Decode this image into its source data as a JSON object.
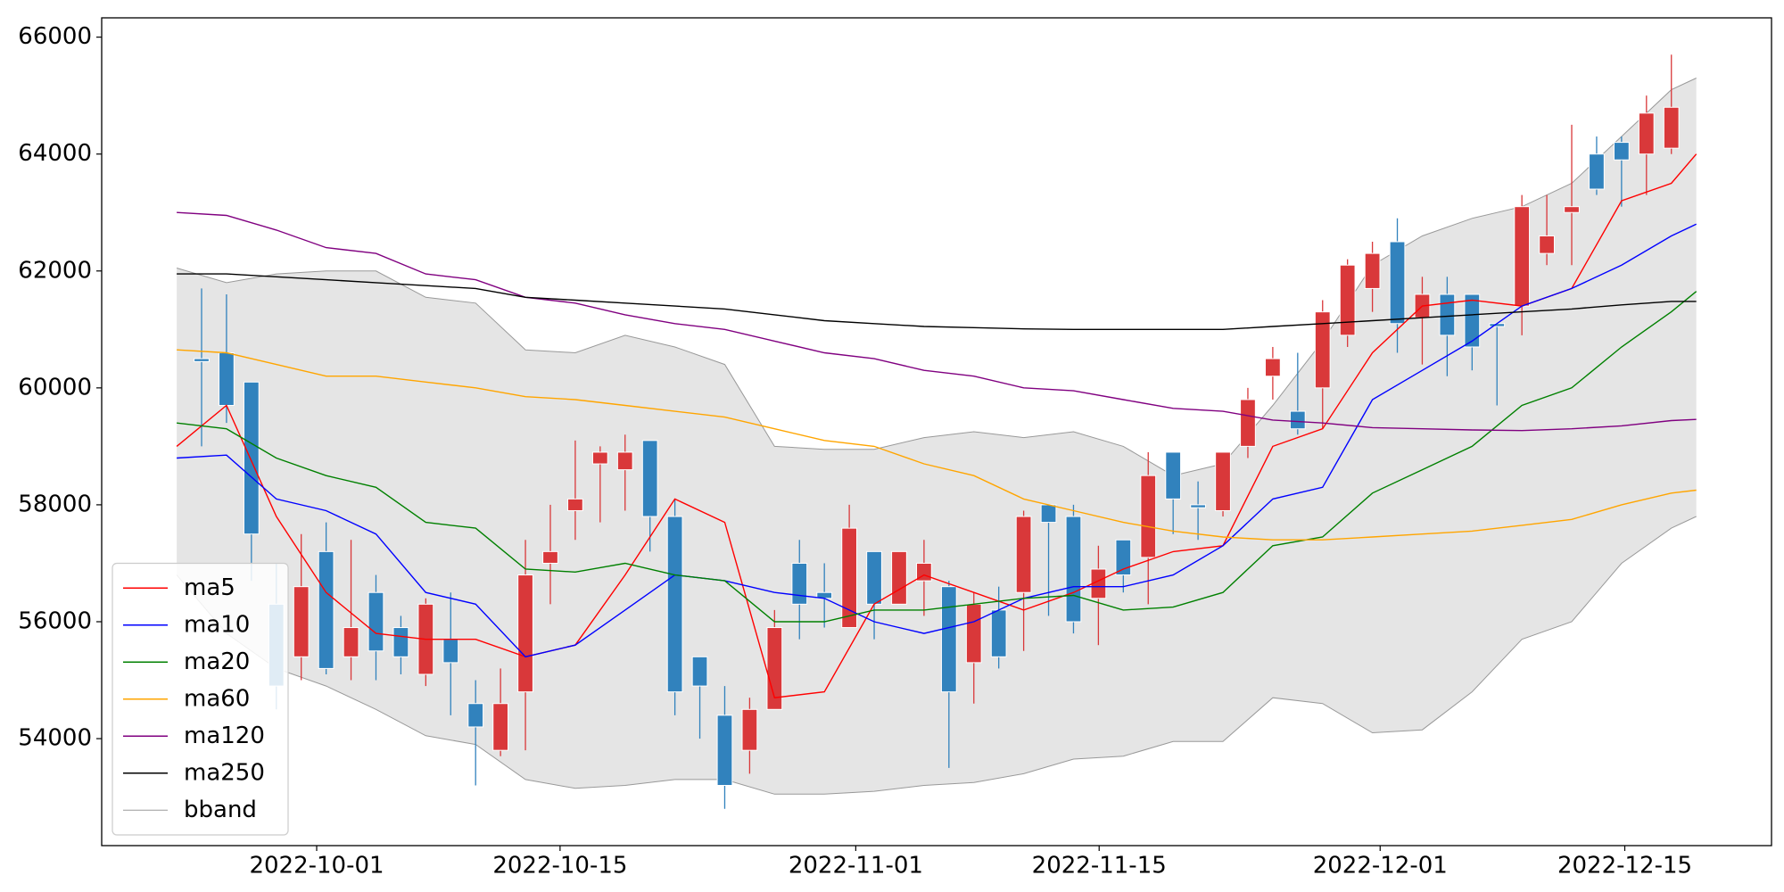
{
  "chart_data": {
    "type": "candlestick",
    "xlim": [
      -3.01,
      64.02
    ],
    "xticks": [
      {
        "value": 5.62,
        "label": "2022-10-01"
      },
      {
        "value": 15.39,
        "label": "2022-10-15"
      },
      {
        "value": 27.26,
        "label": "2022-11-01"
      },
      {
        "value": 37.03,
        "label": "2022-11-15"
      },
      {
        "value": 48.31,
        "label": "2022-12-01"
      },
      {
        "value": 58.13,
        "label": "2022-12-15"
      }
    ],
    "ylim": [
      52170,
      66330
    ],
    "yticks": [
      54000,
      56000,
      58000,
      60000,
      62000,
      64000,
      66000
    ],
    "legend": "lower left",
    "up_color": "#d9383a",
    "down_color": "#3182bd",
    "candles": {
      "x": [
        1,
        2,
        3,
        4,
        5,
        6,
        7,
        8,
        9,
        10,
        11,
        12,
        13,
        14,
        15,
        16,
        17,
        18,
        19,
        20,
        21,
        22,
        23,
        24,
        25,
        26,
        27,
        28,
        29,
        30,
        31,
        32,
        33,
        34,
        35,
        36,
        37,
        38,
        39,
        40,
        41,
        42,
        43,
        44,
        45,
        46,
        47,
        48,
        49,
        50,
        51,
        52,
        53,
        54,
        55,
        56,
        57,
        58,
        59,
        60
      ],
      "open": [
        60500,
        60600,
        60100,
        56300,
        55400,
        57200,
        55400,
        56500,
        55900,
        55100,
        55700,
        54600,
        53800,
        54800,
        57000,
        57900,
        58700,
        58600,
        59100,
        57800,
        55400,
        54400,
        53800,
        54500,
        57000,
        56500,
        55900,
        57200,
        56300,
        56700,
        56600,
        55300,
        56200,
        56500,
        58000,
        57800,
        56400,
        57400,
        57100,
        58900,
        58000,
        57900,
        59000,
        60200,
        59600,
        60000,
        60900,
        61700,
        62500,
        61200,
        61600,
        61600,
        61100,
        61400,
        62300,
        63000,
        64000,
        64200,
        64000,
        64100
      ],
      "high": [
        61700,
        61600,
        60100,
        57000,
        57500,
        57700,
        57400,
        56800,
        56100,
        56400,
        56500,
        55000,
        55200,
        57400,
        58000,
        59100,
        59000,
        59200,
        59100,
        58100,
        55400,
        54900,
        54700,
        56200,
        57400,
        57000,
        58000,
        57200,
        57200,
        57400,
        56700,
        56500,
        56600,
        57900,
        58000,
        58000,
        57300,
        57400,
        58900,
        58900,
        58400,
        58900,
        60000,
        60700,
        60600,
        61500,
        62200,
        62500,
        62900,
        61900,
        61900,
        61600,
        61100,
        63300,
        63300,
        64500,
        64300,
        64300,
        65000,
        65700
      ],
      "low": [
        59000,
        59400,
        56700,
        54500,
        55000,
        55100,
        55000,
        55000,
        55100,
        54900,
        54400,
        53200,
        53700,
        53800,
        56300,
        57400,
        57700,
        57900,
        57200,
        54400,
        54000,
        52800,
        53400,
        54500,
        55700,
        55900,
        55900,
        55700,
        56300,
        56100,
        53500,
        54600,
        55200,
        55500,
        56100,
        55800,
        55600,
        56500,
        56300,
        57500,
        57400,
        57800,
        58800,
        59800,
        59200,
        59300,
        60700,
        61300,
        60600,
        60400,
        60200,
        60300,
        59700,
        60900,
        62100,
        62100,
        63300,
        63100,
        63300,
        64000
      ],
      "close": [
        60450,
        59700,
        57500,
        54900,
        56600,
        55200,
        55900,
        55500,
        55400,
        56300,
        55300,
        54200,
        54600,
        56800,
        57200,
        58100,
        58900,
        58900,
        57800,
        54800,
        54900,
        53200,
        54500,
        55900,
        56300,
        56400,
        57600,
        56300,
        57200,
        57000,
        54800,
        56300,
        55400,
        57800,
        57700,
        56000,
        56900,
        56800,
        58500,
        58100,
        57950,
        58900,
        59800,
        60500,
        59300,
        61300,
        62100,
        62300,
        61100,
        61600,
        60900,
        60700,
        61050,
        63100,
        62600,
        63100,
        63400,
        63900,
        64700,
        64800
      ]
    },
    "x": [
      0,
      2,
      4,
      6,
      8,
      10,
      12,
      14,
      16,
      18,
      20,
      22,
      24,
      26,
      28,
      30,
      32,
      34,
      36,
      38,
      40,
      42,
      44,
      46,
      48,
      50,
      52,
      54,
      56,
      58,
      60,
      61
    ],
    "series": [
      {
        "name": "ma5",
        "color": "#ff0000",
        "values": [
          59000,
          59700,
          57800,
          56500,
          55800,
          55700,
          55700,
          55400,
          55600,
          56800,
          58100,
          57700,
          54700,
          54800,
          56300,
          56800,
          56500,
          56200,
          56500,
          56900,
          57200,
          57300,
          59000,
          59300,
          60600,
          61400,
          61500,
          61400,
          61700,
          63200,
          63500,
          64000
        ]
      },
      {
        "name": "ma10",
        "color": "#0000ff",
        "values": [
          58800,
          58850,
          58100,
          57900,
          57500,
          56500,
          56300,
          55400,
          55600,
          56200,
          56800,
          56700,
          56500,
          56400,
          56000,
          55800,
          56000,
          56400,
          56600,
          56600,
          56800,
          57300,
          58100,
          58300,
          59800,
          60300,
          60800,
          61400,
          61700,
          62100,
          62600,
          62800
        ]
      },
      {
        "name": "ma20",
        "color": "#008000",
        "values": [
          59400,
          59300,
          58800,
          58500,
          58300,
          57700,
          57600,
          56900,
          56850,
          57000,
          56800,
          56700,
          56000,
          56000,
          56200,
          56200,
          56300,
          56400,
          56450,
          56200,
          56250,
          56500,
          57300,
          57450,
          58200,
          58600,
          59000,
          59700,
          60000,
          60700,
          61300,
          61650
        ]
      },
      {
        "name": "ma60",
        "color": "#ffa500",
        "values": [
          60650,
          60600,
          60400,
          60200,
          60200,
          60100,
          60000,
          59850,
          59800,
          59700,
          59600,
          59500,
          59300,
          59100,
          59000,
          58700,
          58500,
          58100,
          57900,
          57700,
          57550,
          57450,
          57400,
          57400,
          57450,
          57500,
          57550,
          57650,
          57750,
          58000,
          58200,
          58250
        ]
      },
      {
        "name": "ma120",
        "color": "#800080",
        "values": [
          63000,
          62950,
          62700,
          62400,
          62300,
          61950,
          61850,
          61550,
          61450,
          61250,
          61100,
          61000,
          60800,
          60600,
          60500,
          60300,
          60200,
          60000,
          59950,
          59800,
          59650,
          59600,
          59450,
          59400,
          59320,
          59300,
          59280,
          59270,
          59300,
          59350,
          59440,
          59460
        ]
      },
      {
        "name": "ma250",
        "color": "#000000",
        "values": [
          61950,
          61950,
          61900,
          61850,
          61800,
          61750,
          61700,
          61550,
          61500,
          61450,
          61400,
          61350,
          61250,
          61150,
          61100,
          61050,
          61030,
          61010,
          61000,
          61000,
          61000,
          61000,
          61050,
          61100,
          61150,
          61200,
          61250,
          61300,
          61350,
          61420,
          61480,
          61480
        ]
      }
    ],
    "band": {
      "name": "bband",
      "color": "#999999",
      "fill": "#e5e5e5",
      "upper": [
        62050,
        61800,
        61950,
        62000,
        62000,
        61550,
        61450,
        60650,
        60600,
        60900,
        60700,
        60400,
        59000,
        58950,
        58950,
        59150,
        59250,
        59150,
        59250,
        59000,
        58500,
        58700,
        59700,
        60800,
        62100,
        62600,
        62900,
        63100,
        63500,
        64300,
        65100,
        65300
      ],
      "lower": [
        56800,
        55800,
        55200,
        54900,
        54500,
        54050,
        53900,
        53300,
        53150,
        53200,
        53300,
        53300,
        53050,
        53050,
        53100,
        53200,
        53250,
        53400,
        53650,
        53700,
        53950,
        53950,
        54700,
        54600,
        54100,
        54150,
        54800,
        55700,
        56000,
        57000,
        57600,
        57800
      ]
    }
  }
}
